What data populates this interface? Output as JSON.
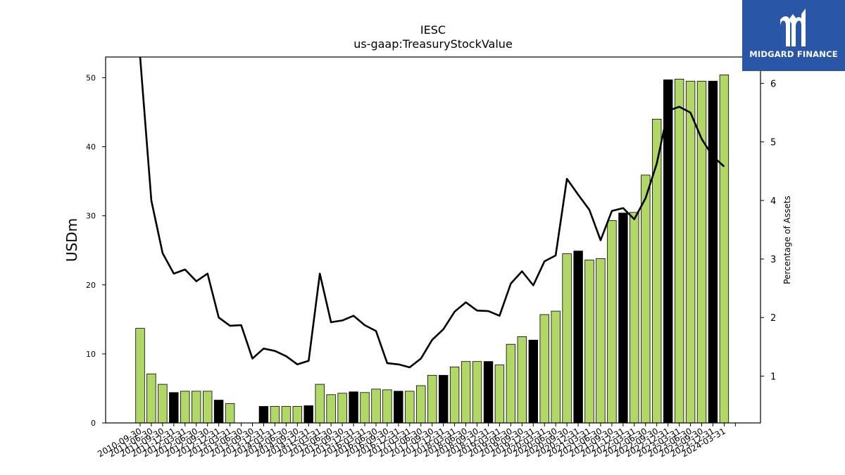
{
  "chart_data": {
    "type": "bar",
    "title": "IESC",
    "subtitle": "us-gaap:TreasuryStockValue",
    "ylabel": "USDm",
    "y2label": "Percentage of Assets",
    "ylim": [
      0,
      53
    ],
    "y2lim": [
      0.2,
      6.45
    ],
    "yticks": [
      0,
      10,
      20,
      30,
      40,
      50
    ],
    "y2ticks": [
      1,
      2,
      3,
      4,
      5,
      6
    ],
    "grid": false,
    "categories": [
      "2010-09-30",
      "2010-12-31",
      "2011-03-31",
      "2011-06-30",
      "2011-09-30",
      "2011-12-31",
      "2012-03-31",
      "2012-06-30",
      "2012-09-30",
      "2012-12-31",
      "2013-03-31",
      "2013-06-30",
      "2013-09-30",
      "2013-12-31",
      "2014-03-31",
      "2014-06-30",
      "2014-09-30",
      "2014-12-31",
      "2015-03-31",
      "2015-06-30",
      "2015-09-30",
      "2015-12-31",
      "2016-03-31",
      "2016-06-30",
      "2016-09-30",
      "2016-12-31",
      "2017-03-31",
      "2017-06-30",
      "2017-09-30",
      "2017-12-31",
      "2018-03-31",
      "2018-06-30",
      "2018-09-30",
      "2018-12-31",
      "2019-03-31",
      "2019-06-30",
      "2019-09-30",
      "2019-12-31",
      "2020-03-31",
      "2020-06-30",
      "2020-09-30",
      "2020-12-31",
      "2021-03-31",
      "2021-06-30",
      "2021-09-30",
      "2021-12-31",
      "2022-03-31",
      "2022-06-30",
      "2022-09-30",
      "2022-12-31",
      "2023-03-31",
      "2023-06-30",
      "2023-09-30",
      "2023-12-31",
      "2024-03-31"
    ],
    "tick_labels": [
      "2010-09-30",
      "2011-06-30",
      "2011-09-30",
      "2011-12-31",
      "2012-03-31",
      "2012-06-30",
      "2012-09-30",
      "2012-12-31",
      "2013-03-31",
      "2013-06-30",
      "2013-09-30",
      "2013-12-31",
      "2014-03-31",
      "2014-06-30",
      "2014-09-30",
      "2014-12-31",
      "2015-03-31",
      "2015-06-30",
      "2015-09-30",
      "2015-12-31",
      "2016-03-31",
      "2016-06-30",
      "2016-09-30",
      "2016-12-31",
      "2017-03-31",
      "2017-06-30",
      "2017-09-30",
      "2017-12-31",
      "2018-03-31",
      "2018-06-30",
      "2018-09-30",
      "2018-12-31",
      "2019-03-31",
      "2019-06-30",
      "2019-09-30",
      "2019-12-31",
      "2020-03-31",
      "2020-06-30",
      "2020-09-30",
      "2020-12-31",
      "2021-03-31",
      "2021-06-30",
      "2021-09-30",
      "2021-12-31",
      "2022-03-31",
      "2022-06-30",
      "2022-09-30",
      "2022-12-31",
      "2023-03-31",
      "2023-06-30",
      "2023-09-30",
      "2023-12-31",
      "2024-03-31"
    ],
    "values": [
      13.7,
      7.1,
      5.6,
      4.4,
      4.6,
      4.6,
      4.6,
      3.3,
      2.8,
      0,
      0,
      2.4,
      2.4,
      2.4,
      2.4,
      2.5,
      5.6,
      4.1,
      4.3,
      4.5,
      4.4,
      4.9,
      4.8,
      4.6,
      4.6,
      5.4,
      6.9,
      6.9,
      8.1,
      8.9,
      8.9,
      8.9,
      8.4,
      11.4,
      12.5,
      12.0,
      15.7,
      16.2,
      24.5,
      24.9,
      23.6,
      23.8,
      29.3,
      30.4,
      30.5,
      35.9,
      44.0,
      49.7,
      49.8,
      49.5,
      49.5,
      49.5,
      50.4,
      null,
      null
    ],
    "bar_colors": [
      "#b1d767",
      "#b1d767",
      "#b1d767",
      "#000000",
      "#b1d767",
      "#b1d767",
      "#b1d767",
      "#000000",
      "#b1d767",
      "#b1d767",
      "#b1d767",
      "#000000",
      "#b1d767",
      "#b1d767",
      "#b1d767",
      "#000000",
      "#b1d767",
      "#b1d767",
      "#b1d767",
      "#000000",
      "#b1d767",
      "#b1d767",
      "#b1d767",
      "#000000",
      "#b1d767",
      "#b1d767",
      "#b1d767",
      "#000000",
      "#b1d767",
      "#b1d767",
      "#b1d767",
      "#000000",
      "#b1d767",
      "#b1d767",
      "#b1d767",
      "#000000",
      "#b1d767",
      "#b1d767",
      "#b1d767",
      "#000000",
      "#b1d767",
      "#b1d767",
      "#b1d767",
      "#000000",
      "#b1d767",
      "#b1d767",
      "#b1d767",
      "#000000",
      "#b1d767",
      "#b1d767",
      "#b1d767",
      "#000000",
      "#b1d767",
      "#b1d767",
      "#b1d767"
    ],
    "line_series": {
      "axis": "right",
      "color": "#000000",
      "values": [
        6.5,
        4.0,
        3.1,
        2.75,
        2.82,
        2.62,
        2.75,
        2.0,
        1.86,
        1.87,
        1.3,
        1.47,
        1.43,
        1.34,
        1.2,
        1.26,
        2.75,
        1.92,
        1.95,
        2.03,
        1.87,
        1.77,
        1.22,
        1.2,
        1.15,
        1.3,
        1.62,
        1.8,
        2.1,
        2.26,
        2.12,
        2.11,
        2.03,
        2.58,
        2.79,
        2.55,
        2.96,
        3.06,
        4.37,
        4.1,
        3.84,
        3.32,
        3.82,
        3.87,
        3.68,
        4.04,
        4.63,
        5.53,
        5.6,
        5.5,
        5.05,
        4.75,
        4.58
      ]
    }
  },
  "logo": {
    "text": "MIDGARD FINANCE",
    "background": "#2a56a8"
  }
}
